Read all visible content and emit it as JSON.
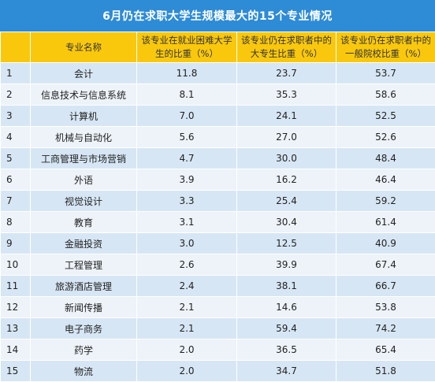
{
  "title": "6月仍在求职大学生规模最大的15个专业情况",
  "headers": [
    "",
    "专业名称",
    "该专业在就业困难大学生的比重（%）",
    "该专业仍在求职者中的大专生比重（%）",
    "该专业仍在求职者中的一般院校比重（%）"
  ],
  "rows": [
    {
      "idx": "1",
      "name": "会计",
      "hard": "11.8",
      "junior": "23.7",
      "general": "53.7"
    },
    {
      "idx": "2",
      "name": "信息技术与信息系统",
      "hard": "8.1",
      "junior": "35.3",
      "general": "58.6"
    },
    {
      "idx": "3",
      "name": "计算机",
      "hard": "7.0",
      "junior": "24.1",
      "general": "52.5"
    },
    {
      "idx": "4",
      "name": "机械与自动化",
      "hard": "5.6",
      "junior": "27.0",
      "general": "52.6"
    },
    {
      "idx": "5",
      "name": "工商管理与市场营销",
      "hard": "4.7",
      "junior": "30.0",
      "general": "48.4"
    },
    {
      "idx": "6",
      "name": "外语",
      "hard": "3.9",
      "junior": "16.2",
      "general": "46.4"
    },
    {
      "idx": "7",
      "name": "视觉设计",
      "hard": "3.3",
      "junior": "25.4",
      "general": "59.2"
    },
    {
      "idx": "8",
      "name": "教育",
      "hard": "3.1",
      "junior": "30.4",
      "general": "61.4"
    },
    {
      "idx": "9",
      "name": "金融投资",
      "hard": "3.0",
      "junior": "12.5",
      "general": "40.9"
    },
    {
      "idx": "10",
      "name": "工程管理",
      "hard": "2.6",
      "junior": "39.9",
      "general": "67.4"
    },
    {
      "idx": "11",
      "name": "旅游酒店管理",
      "hard": "2.4",
      "junior": "38.1",
      "general": "66.7"
    },
    {
      "idx": "12",
      "name": "新闻传播",
      "hard": "2.1",
      "junior": "14.6",
      "general": "53.8"
    },
    {
      "idx": "13",
      "name": "电子商务",
      "hard": "2.1",
      "junior": "59.4",
      "general": "74.2"
    },
    {
      "idx": "14",
      "name": "药学",
      "hard": "2.0",
      "junior": "36.5",
      "general": "65.4"
    },
    {
      "idx": "15",
      "name": "物流",
      "hard": "2.0",
      "junior": "34.7",
      "general": "51.8"
    }
  ],
  "colors": {
    "title_bg": "#2e8bd6",
    "header_bg": "#f9c80d",
    "row_odd": "#d7e6f4",
    "row_even": "#edf3f9"
  }
}
